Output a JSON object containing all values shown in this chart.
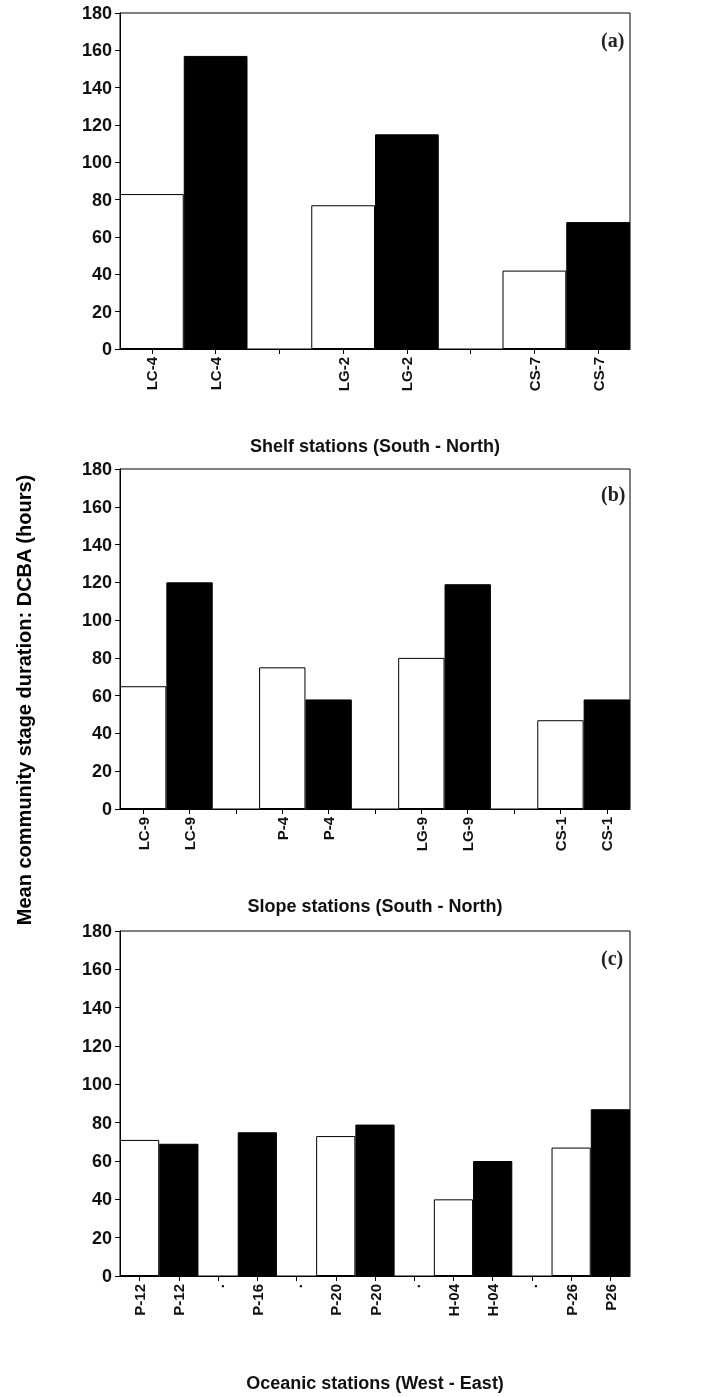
{
  "chart_data": [
    {
      "type": "bar",
      "title": "(a)",
      "xlabel": "Shelf stations (South - North)",
      "categories": [
        "LC-4",
        "LC-4",
        null,
        "LG-2",
        "LG-2",
        null,
        "CS-7",
        "CS-7"
      ],
      "series": [
        {
          "color": "#ffffff",
          "values": [
            83,
            null,
            null,
            77,
            null,
            null,
            42,
            null
          ]
        },
        {
          "color": "#000000",
          "values": [
            null,
            157,
            null,
            null,
            115,
            null,
            null,
            68
          ]
        }
      ],
      "ylim": [
        0,
        180
      ],
      "yticks": [
        0,
        20,
        40,
        60,
        80,
        100,
        120,
        140,
        160,
        180
      ],
      "grid": false
    },
    {
      "type": "bar",
      "title": "(b)",
      "xlabel": "Slope stations (South - North)",
      "ylabel": "Mean community stage duration: DCBA (hours)",
      "categories": [
        "LC-9",
        "LC-9",
        null,
        "P-4",
        "P-4",
        null,
        "LG-9",
        "LG-9",
        null,
        "CS-1",
        "CS-1"
      ],
      "series": [
        {
          "color": "#ffffff",
          "values": [
            65,
            null,
            null,
            75,
            null,
            null,
            80,
            null,
            null,
            47,
            null
          ]
        },
        {
          "color": "#000000",
          "values": [
            null,
            120,
            null,
            null,
            58,
            null,
            null,
            119,
            null,
            null,
            58
          ]
        }
      ],
      "ylim": [
        0,
        180
      ],
      "yticks": [
        0,
        20,
        40,
        60,
        80,
        100,
        120,
        140,
        160,
        180
      ],
      "grid": false
    },
    {
      "type": "bar",
      "title": "(c)",
      "xlabel": "Oceanic stations (West - East)",
      "categories": [
        "P-12",
        "P-12",
        ".",
        "P-16",
        ".",
        "P-20",
        "P-20",
        ".",
        "H-04",
        "H-04",
        ".",
        "P-26",
        "P26"
      ],
      "series": [
        {
          "color": "#ffffff",
          "values": [
            71,
            null,
            null,
            null,
            null,
            73,
            null,
            null,
            40,
            null,
            null,
            67,
            null
          ]
        },
        {
          "color": "#000000",
          "values": [
            null,
            69,
            null,
            75,
            null,
            null,
            79,
            null,
            null,
            60,
            null,
            null,
            87
          ]
        }
      ],
      "ylim": [
        0,
        180
      ],
      "yticks": [
        0,
        20,
        40,
        60,
        80,
        100,
        120,
        140,
        160,
        180
      ],
      "grid": false
    }
  ]
}
